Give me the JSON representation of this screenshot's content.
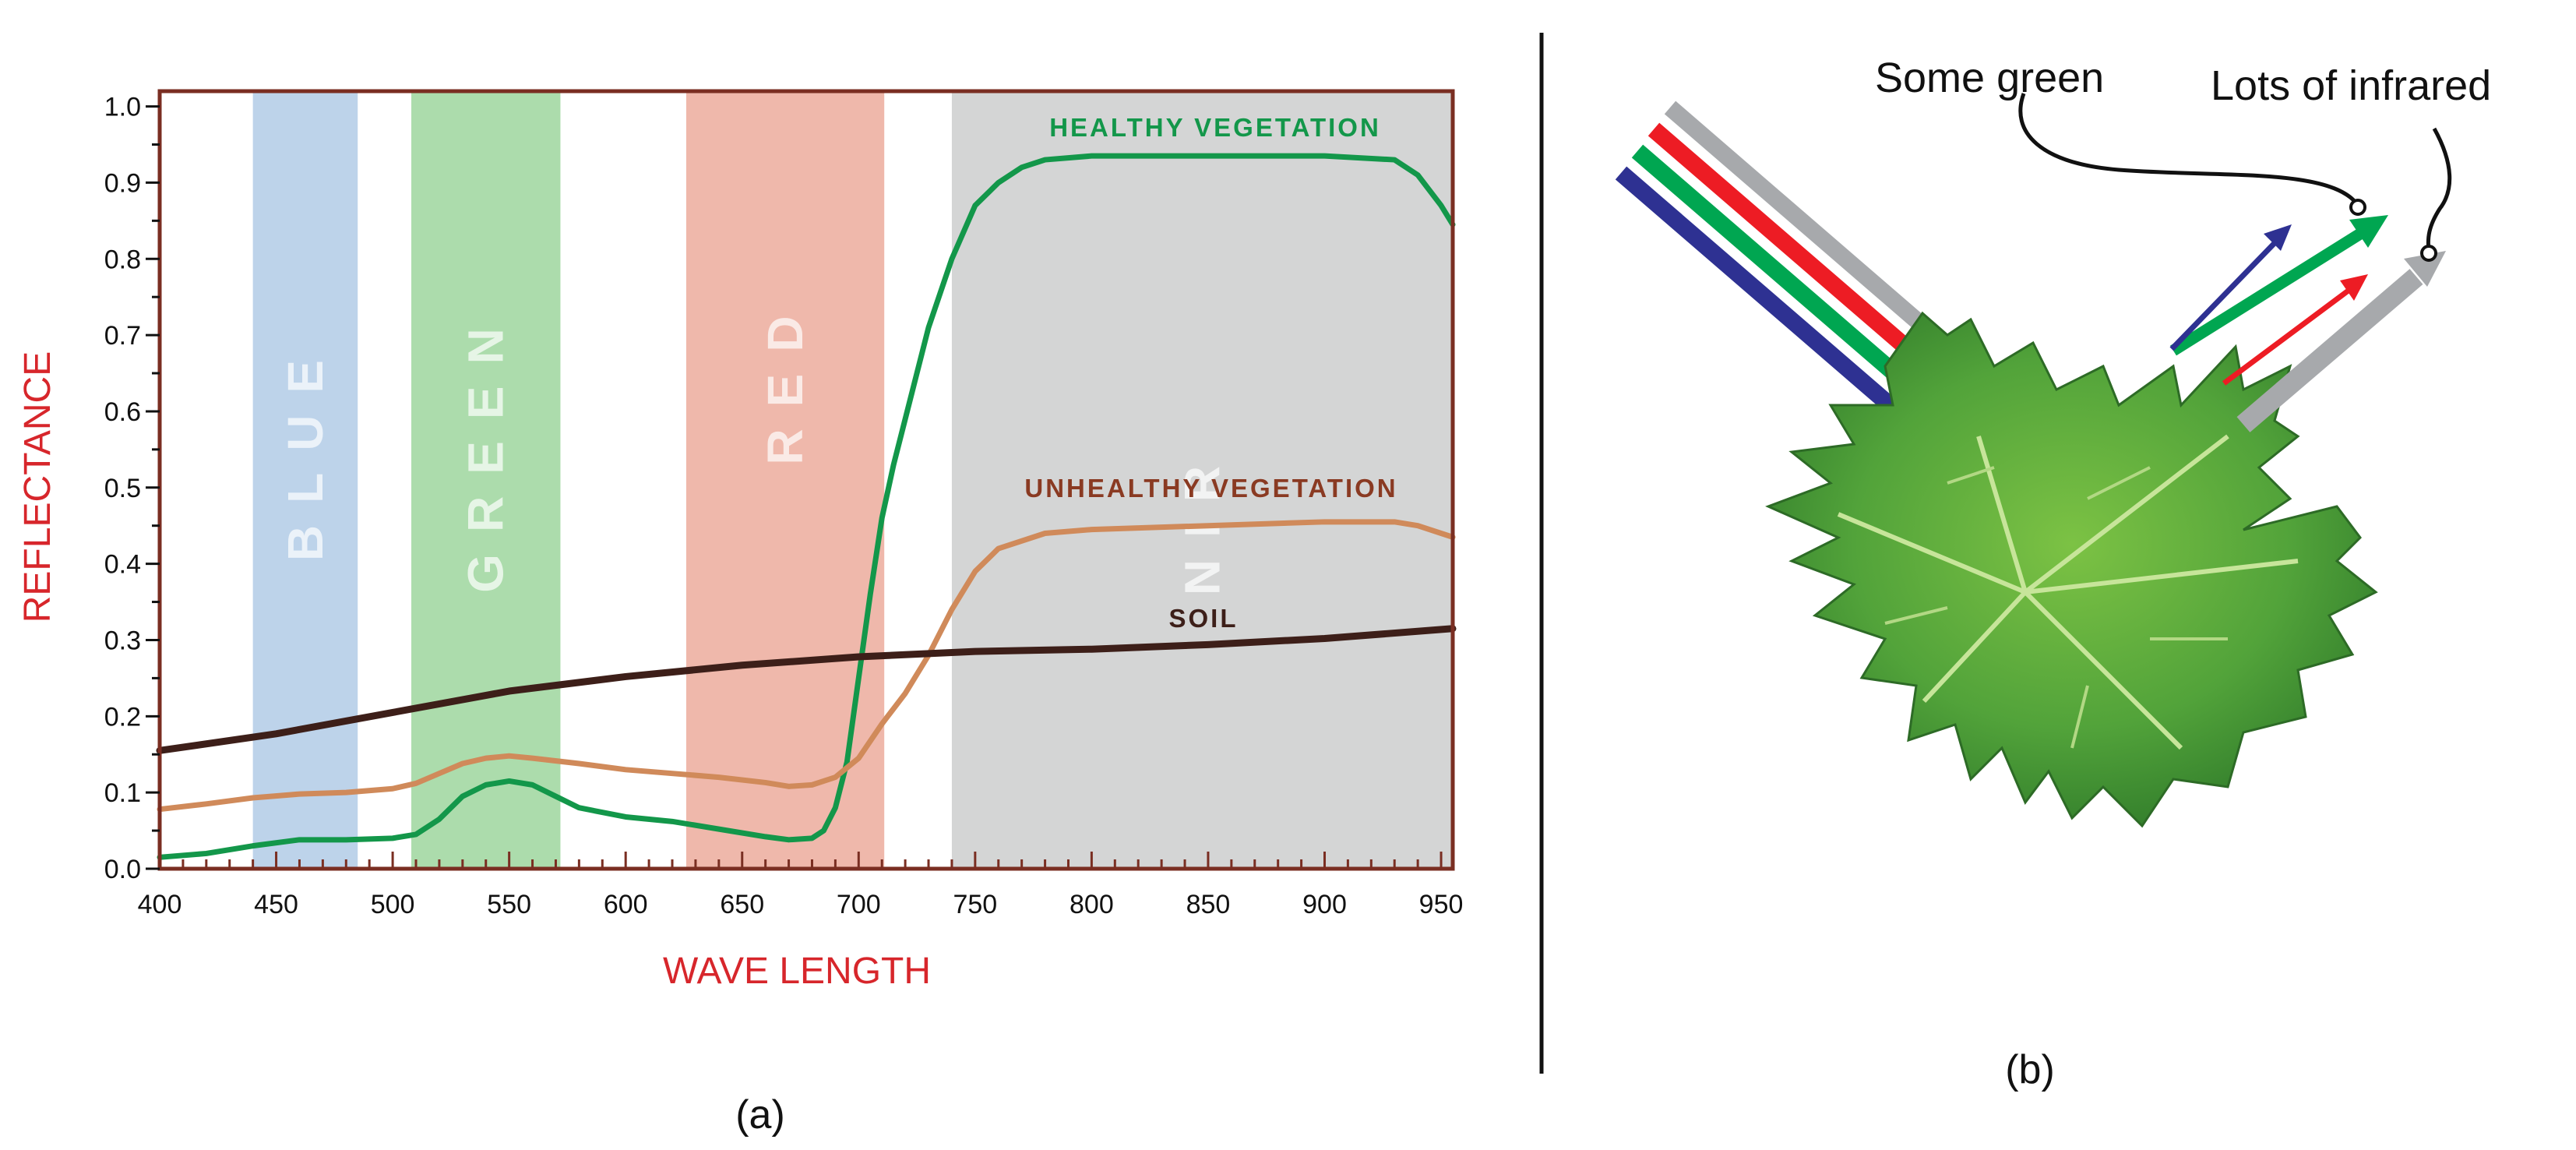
{
  "chart_data": {
    "type": "line",
    "xlabel": "WAVE LENGTH",
    "ylabel": "REFLECTANCE",
    "xlim": [
      400,
      955
    ],
    "ylim": [
      0,
      1.02
    ],
    "xticks": [
      "400",
      "450",
      "500",
      "550",
      "600",
      "650",
      "700",
      "750",
      "800",
      "850",
      "900",
      "950"
    ],
    "yticks": [
      "0.0",
      "0.1",
      "0.2",
      "0.3",
      "0.4",
      "0.5",
      "0.6",
      "0.7",
      "0.8",
      "0.9",
      "1.0"
    ],
    "grid": false,
    "bands": [
      {
        "label": "BLUE",
        "x0": 440,
        "x1": 485,
        "color": "#bdd3ea"
      },
      {
        "label": "GREEN",
        "x0": 508,
        "x1": 572,
        "color": "#acdcac"
      },
      {
        "label": "RED",
        "x0": 626,
        "x1": 711,
        "color": "#efb8ab"
      },
      {
        "label": "NIR",
        "x0": 740,
        "x1": 955,
        "color": "#d4d5d5"
      }
    ],
    "series": [
      {
        "name": "HEALTHY VEGETATION",
        "color": "#13974a",
        "label_color": "#13974a",
        "x": [
          400,
          420,
          440,
          460,
          480,
          500,
          510,
          520,
          530,
          540,
          550,
          560,
          570,
          580,
          600,
          620,
          640,
          660,
          670,
          680,
          685,
          690,
          695,
          700,
          705,
          710,
          715,
          720,
          730,
          740,
          750,
          760,
          770,
          780,
          800,
          850,
          900,
          930,
          940,
          950,
          955
        ],
        "y": [
          0.015,
          0.02,
          0.03,
          0.038,
          0.038,
          0.04,
          0.045,
          0.065,
          0.095,
          0.11,
          0.115,
          0.11,
          0.095,
          0.08,
          0.068,
          0.062,
          0.052,
          0.042,
          0.038,
          0.04,
          0.05,
          0.08,
          0.14,
          0.25,
          0.36,
          0.46,
          0.53,
          0.59,
          0.71,
          0.8,
          0.87,
          0.9,
          0.92,
          0.93,
          0.935,
          0.935,
          0.935,
          0.93,
          0.91,
          0.87,
          0.845
        ]
      },
      {
        "name": "UNHEALTHY VEGETATION",
        "color": "#d08a5a",
        "label_color": "#8a3a22",
        "x": [
          400,
          420,
          440,
          460,
          480,
          500,
          510,
          520,
          530,
          540,
          550,
          560,
          580,
          600,
          620,
          640,
          660,
          670,
          680,
          690,
          700,
          710,
          720,
          730,
          740,
          750,
          760,
          780,
          800,
          850,
          900,
          930,
          940,
          950,
          955
        ],
        "y": [
          0.078,
          0.085,
          0.093,
          0.098,
          0.1,
          0.105,
          0.112,
          0.125,
          0.138,
          0.145,
          0.148,
          0.145,
          0.138,
          0.13,
          0.125,
          0.12,
          0.113,
          0.108,
          0.11,
          0.12,
          0.145,
          0.19,
          0.23,
          0.28,
          0.34,
          0.39,
          0.42,
          0.44,
          0.445,
          0.45,
          0.455,
          0.455,
          0.45,
          0.44,
          0.435
        ]
      },
      {
        "name": "SOIL",
        "color": "#3d1f19",
        "label_color": "#3d1f19",
        "x": [
          400,
          450,
          500,
          550,
          600,
          650,
          700,
          750,
          800,
          850,
          900,
          955
        ],
        "y": [
          0.155,
          0.177,
          0.205,
          0.233,
          0.252,
          0.267,
          0.278,
          0.285,
          0.288,
          0.294,
          0.302,
          0.315
        ]
      }
    ]
  },
  "captions": {
    "left": "(a)",
    "right": "(b)"
  },
  "diagram": {
    "callout_green": "Some green",
    "callout_infrared": "Lots of infrared",
    "beam_colors": [
      "#a7a9ac",
      "#ed1c24",
      "#00a651",
      "#2e3192"
    ]
  }
}
